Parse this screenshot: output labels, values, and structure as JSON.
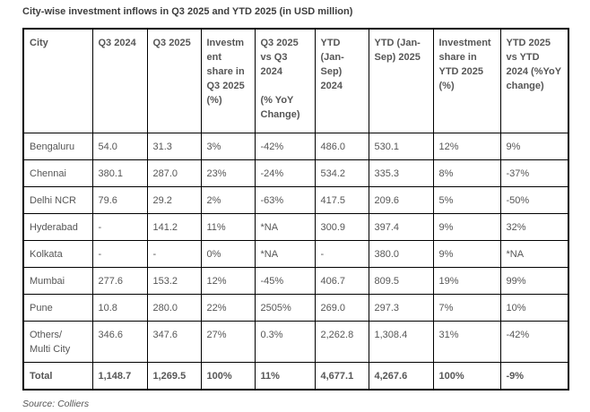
{
  "title": "City-wise investment inflows in Q3 2025 and YTD 2025 (in USD million)",
  "source": "Source: Colliers",
  "colors": {
    "border": "#000000",
    "text": "#565656",
    "title_text": "#3d3d3d",
    "background": "#ffffff"
  },
  "table": {
    "columns": [
      "City",
      "Q3 2024",
      "Q3 2025",
      "Investment share in Q3 2025 (%)",
      "Q3 2025 vs Q3 2024\n\n(% YoY Change)",
      "YTD (Jan-Sep) 2024",
      "YTD (Jan-Sep) 2025",
      "Investment share in YTD 2025 (%)",
      "YTD 2025 vs YTD 2024 (%YoY change)"
    ],
    "rows": [
      {
        "bold": false,
        "cells": [
          "Bengaluru",
          "54.0",
          "31.3",
          "3%",
          "-42%",
          "486.0",
          "530.1",
          "12%",
          "9%"
        ]
      },
      {
        "bold": false,
        "cells": [
          "Chennai",
          "380.1",
          "287.0",
          "23%",
          "-24%",
          "534.2",
          "335.3",
          "8%",
          "-37%"
        ]
      },
      {
        "bold": false,
        "cells": [
          "Delhi NCR",
          "79.6",
          "29.2",
          "2%",
          "-63%",
          "417.5",
          "209.6",
          "5%",
          "-50%"
        ]
      },
      {
        "bold": false,
        "cells": [
          "Hyderabad",
          "-",
          "141.2",
          "11%",
          "*NA",
          "300.9",
          "397.4",
          "9%",
          "32%"
        ]
      },
      {
        "bold": false,
        "cells": [
          "Kolkata",
          "-",
          "-",
          "0%",
          "*NA",
          "-",
          "380.0",
          "9%",
          "*NA"
        ]
      },
      {
        "bold": false,
        "cells": [
          "Mumbai",
          "277.6",
          "153.2",
          "12%",
          "-45%",
          "406.7",
          "809.5",
          "19%",
          "99%"
        ]
      },
      {
        "bold": false,
        "cells": [
          "Pune",
          "10.8",
          "280.0",
          "22%",
          "2505%",
          "269.0",
          "297.3",
          "7%",
          "10%"
        ]
      },
      {
        "bold": false,
        "cells": [
          "Others/\nMulti City",
          "346.6",
          "347.6",
          "27%",
          "0.3%",
          "2,262.8",
          "1,308.4",
          "31%",
          "-42%"
        ]
      },
      {
        "bold": true,
        "cells": [
          "Total",
          "1,148.7",
          "1,269.5",
          "100%",
          "11%",
          "4,677.1",
          "4,267.6",
          "100%",
          "-9%"
        ]
      }
    ]
  },
  "chart_data": {
    "type": "table",
    "title": "City-wise investment inflows in Q3 2025 and YTD 2025 (in USD million)",
    "categories": [
      "Bengaluru",
      "Chennai",
      "Delhi NCR",
      "Hyderabad",
      "Kolkata",
      "Mumbai",
      "Pune",
      "Others/Multi City",
      "Total"
    ],
    "series": [
      {
        "name": "Q3 2024",
        "values": [
          "54.0",
          "380.1",
          "79.6",
          "-",
          "-",
          "277.6",
          "10.8",
          "346.6",
          "1,148.7"
        ]
      },
      {
        "name": "Q3 2025",
        "values": [
          "31.3",
          "287.0",
          "29.2",
          "141.2",
          "-",
          "153.2",
          "280.0",
          "347.6",
          "1,269.5"
        ]
      },
      {
        "name": "Investment share in Q3 2025 (%)",
        "values": [
          "3%",
          "23%",
          "2%",
          "11%",
          "0%",
          "12%",
          "22%",
          "27%",
          "100%"
        ]
      },
      {
        "name": "Q3 2025 vs Q3 2024 (% YoY Change)",
        "values": [
          "-42%",
          "-24%",
          "-63%",
          "*NA",
          "*NA",
          "-45%",
          "2505%",
          "0.3%",
          "11%"
        ]
      },
      {
        "name": "YTD (Jan-Sep) 2024",
        "values": [
          "486.0",
          "534.2",
          "417.5",
          "300.9",
          "-",
          "406.7",
          "269.0",
          "2,262.8",
          "4,677.1"
        ]
      },
      {
        "name": "YTD (Jan-Sep) 2025",
        "values": [
          "530.1",
          "335.3",
          "209.6",
          "397.4",
          "380.0",
          "809.5",
          "297.3",
          "1,308.4",
          "4,267.6"
        ]
      },
      {
        "name": "Investment share in YTD 2025 (%)",
        "values": [
          "12%",
          "8%",
          "5%",
          "9%",
          "9%",
          "19%",
          "7%",
          "31%",
          "100%"
        ]
      },
      {
        "name": "YTD 2025 vs YTD 2024 (%YoY change)",
        "values": [
          "9%",
          "-37%",
          "-50%",
          "32%",
          "*NA",
          "99%",
          "10%",
          "-42%",
          "-9%"
        ]
      }
    ]
  }
}
